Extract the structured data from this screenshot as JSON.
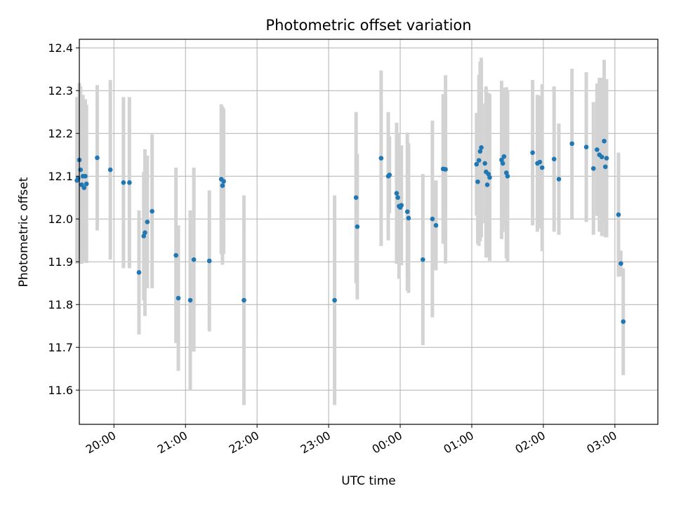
{
  "chart_data": {
    "type": "scatter",
    "title": "Photometric offset variation",
    "xlabel": "UTC time",
    "ylabel": "Photometric offset",
    "grid": true,
    "ylim": [
      11.52,
      12.42
    ],
    "xlim": [
      "19:31",
      "03:36"
    ],
    "y_ticks": [
      11.6,
      11.7,
      11.8,
      11.9,
      12.0,
      12.1,
      12.2,
      12.3,
      12.4
    ],
    "x_ticks": [
      "20:00",
      "21:00",
      "22:00",
      "23:00",
      "00:00",
      "01:00",
      "02:00",
      "03:00"
    ],
    "series": [
      {
        "marker_color": "#1f77b4",
        "errorbar_color": "#d3d3d3",
        "points": [
          {
            "x": "19:29",
            "y": 12.09,
            "err": 0.195
          },
          {
            "x": "19:30",
            "y": 12.095,
            "err": 0.19
          },
          {
            "x": "19:31",
            "y": 12.138,
            "err": 0.18
          },
          {
            "x": "19:32",
            "y": 12.115,
            "err": 0.195
          },
          {
            "x": "19:33",
            "y": 12.08,
            "err": 0.185
          },
          {
            "x": "19:34",
            "y": 12.1,
            "err": 0.19
          },
          {
            "x": "19:35",
            "y": 12.073,
            "err": 0.175
          },
          {
            "x": "19:36",
            "y": 12.1,
            "err": 0.18
          },
          {
            "x": "19:37",
            "y": 12.082,
            "err": 0.185
          },
          {
            "x": "19:46",
            "y": 12.143,
            "err": 0.17
          },
          {
            "x": "19:57",
            "y": 12.115,
            "err": 0.21
          },
          {
            "x": "20:08",
            "y": 12.085,
            "err": 0.2
          },
          {
            "x": "20:13",
            "y": 12.085,
            "err": 0.2
          },
          {
            "x": "20:21",
            "y": 11.875,
            "err": 0.145
          },
          {
            "x": "20:25",
            "y": 11.96,
            "err": 0.15
          },
          {
            "x": "20:26",
            "y": 11.968,
            "err": 0.195
          },
          {
            "x": "20:28",
            "y": 11.993,
            "err": 0.155
          },
          {
            "x": "20:32",
            "y": 12.018,
            "err": 0.18
          },
          {
            "x": "20:52",
            "y": 11.915,
            "err": 0.205
          },
          {
            "x": "20:54",
            "y": 11.815,
            "err": 0.17
          },
          {
            "x": "21:04",
            "y": 11.81,
            "err": 0.21
          },
          {
            "x": "21:07",
            "y": 11.905,
            "err": 0.215
          },
          {
            "x": "21:20",
            "y": 11.902,
            "err": 0.165
          },
          {
            "x": "21:30",
            "y": 12.093,
            "err": 0.175
          },
          {
            "x": "21:31",
            "y": 12.078,
            "err": 0.185
          },
          {
            "x": "21:32",
            "y": 12.088,
            "err": 0.17
          },
          {
            "x": "21:49",
            "y": 11.81,
            "err": 0.245
          },
          {
            "x": "23:05",
            "y": 11.81,
            "err": 0.245
          },
          {
            "x": "23:23",
            "y": 12.05,
            "err": 0.2
          },
          {
            "x": "23:24",
            "y": 11.982,
            "err": 0.17
          },
          {
            "x": "23:44",
            "y": 12.142,
            "err": 0.205
          },
          {
            "x": "23:50",
            "y": 12.1,
            "err": 0.15
          },
          {
            "x": "23:51",
            "y": 12.103,
            "err": 0.09
          },
          {
            "x": "23:57",
            "y": 12.06,
            "err": 0.165
          },
          {
            "x": "23:58",
            "y": 12.05,
            "err": 0.13
          },
          {
            "x": "23:59",
            "y": 12.03,
            "err": 0.17
          },
          {
            "x": "00:00",
            "y": 12.027,
            "err": 0.095
          },
          {
            "x": "00:01",
            "y": 12.032,
            "err": 0.14
          },
          {
            "x": "00:06",
            "y": 12.017,
            "err": 0.185
          },
          {
            "x": "00:07",
            "y": 12.002,
            "err": 0.175
          },
          {
            "x": "00:19",
            "y": 11.905,
            "err": 0.2
          },
          {
            "x": "00:27",
            "y": 12.0,
            "err": 0.23
          },
          {
            "x": "00:30",
            "y": 11.985,
            "err": 0.105
          },
          {
            "x": "00:36",
            "y": 12.117,
            "err": 0.175
          },
          {
            "x": "00:38",
            "y": 12.116,
            "err": 0.22
          },
          {
            "x": "01:04",
            "y": 12.128,
            "err": 0.12
          },
          {
            "x": "01:05",
            "y": 12.087,
            "err": 0.145
          },
          {
            "x": "01:06",
            "y": 12.137,
            "err": 0.2
          },
          {
            "x": "01:07",
            "y": 12.158,
            "err": 0.21
          },
          {
            "x": "01:08",
            "y": 12.167,
            "err": 0.21
          },
          {
            "x": "01:11",
            "y": 12.13,
            "err": 0.14
          },
          {
            "x": "01:12",
            "y": 12.11,
            "err": 0.2
          },
          {
            "x": "01:13",
            "y": 12.08,
            "err": 0.17
          },
          {
            "x": "01:14",
            "y": 12.105,
            "err": 0.19
          },
          {
            "x": "01:15",
            "y": 12.097,
            "err": 0.195
          },
          {
            "x": "01:25",
            "y": 12.138,
            "err": 0.185
          },
          {
            "x": "01:26",
            "y": 12.13,
            "err": 0.16
          },
          {
            "x": "01:27",
            "y": 12.146,
            "err": 0.16
          },
          {
            "x": "01:29",
            "y": 12.108,
            "err": 0.2
          },
          {
            "x": "01:30",
            "y": 12.1,
            "err": 0.2
          },
          {
            "x": "01:51",
            "y": 12.155,
            "err": 0.17
          },
          {
            "x": "01:55",
            "y": 12.13,
            "err": 0.16
          },
          {
            "x": "01:57",
            "y": 12.133,
            "err": 0.155
          },
          {
            "x": "01:59",
            "y": 12.12,
            "err": 0.195
          },
          {
            "x": "02:09",
            "y": 12.14,
            "err": 0.17
          },
          {
            "x": "02:13",
            "y": 12.093,
            "err": 0.13
          },
          {
            "x": "02:24",
            "y": 12.176,
            "err": 0.175
          },
          {
            "x": "02:36",
            "y": 12.168,
            "err": 0.175
          },
          {
            "x": "02:42",
            "y": 12.118,
            "err": 0.155
          },
          {
            "x": "02:45",
            "y": 12.162,
            "err": 0.155
          },
          {
            "x": "02:47",
            "y": 12.15,
            "err": 0.18
          },
          {
            "x": "02:49",
            "y": 12.145,
            "err": 0.185
          },
          {
            "x": "02:51",
            "y": 12.182,
            "err": 0.19
          },
          {
            "x": "02:52",
            "y": 12.122,
            "err": 0.165
          },
          {
            "x": "02:53",
            "y": 12.142,
            "err": 0.185
          },
          {
            "x": "03:03",
            "y": 12.01,
            "err": 0.145
          },
          {
            "x": "03:05",
            "y": 11.896,
            "err": 0.03
          },
          {
            "x": "03:07",
            "y": 11.76,
            "err": 0.125
          }
        ]
      }
    ]
  }
}
